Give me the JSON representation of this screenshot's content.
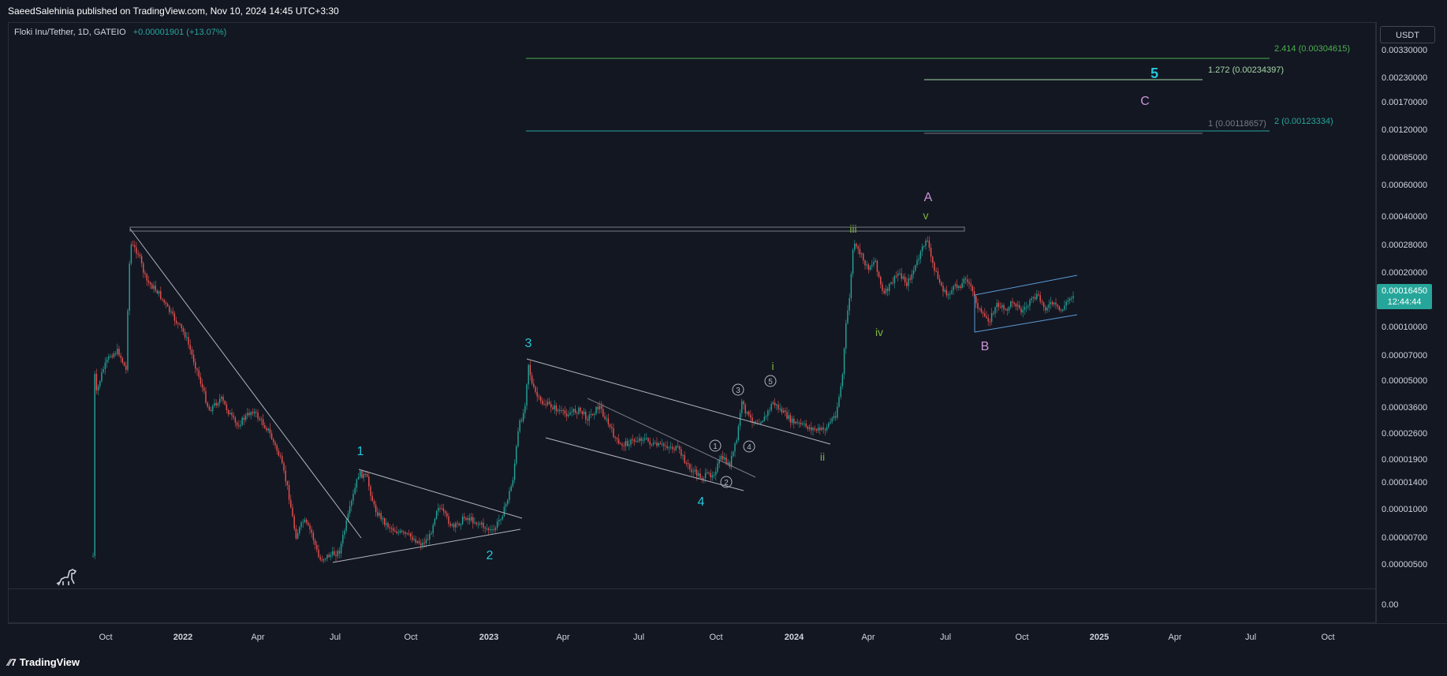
{
  "header": {
    "published": "SaeedSalehinia published on TradingView.com, Nov 10, 2024 14:45 UTC+3:30"
  },
  "legend": {
    "symbol": "Floki Inu/Tether, 1D, GATEIO",
    "change": "+0.00001901 (+13.07%)"
  },
  "price_axis": {
    "currency": "USDT",
    "labels": [
      "0.00330000",
      "0.00230000",
      "0.00170000",
      "0.00120000",
      "0.00085000",
      "0.00060000",
      "0.00040000",
      "0.00028000",
      "0.00020000",
      "0.00010000",
      "0.00007000",
      "0.00005000",
      "0.00003600",
      "0.00002600",
      "0.00001900",
      "0.00001400",
      "0.00001000",
      "0.00000700",
      "0.00000500",
      "0.00"
    ],
    "current_price": "0.00016450",
    "countdown": "12:44:44"
  },
  "time_axis": {
    "labels": [
      "Oct",
      "2022",
      "Apr",
      "Jul",
      "Oct",
      "2023",
      "Apr",
      "Jul",
      "Oct",
      "2024",
      "Apr",
      "Jul",
      "Oct",
      "2025",
      "Apr",
      "Jul",
      "Oct"
    ]
  },
  "fib_levels": [
    {
      "label": "2.414 (0.00304615)",
      "color": "#4caf50"
    },
    {
      "label": "1.272 (0.00234397)",
      "color": "#a5d6a7"
    },
    {
      "label": "1 (0.00118657)",
      "color": "#787b86"
    },
    {
      "label": "2 (0.00123334)",
      "color": "#26a69a"
    }
  ],
  "wave_labels": [
    {
      "text": "1",
      "color": "#26c6da"
    },
    {
      "text": "2",
      "color": "#26c6da"
    },
    {
      "text": "3",
      "color": "#26c6da"
    },
    {
      "text": "4",
      "color": "#26c6da"
    },
    {
      "text": "5",
      "color": "#26c6da"
    },
    {
      "text": "A",
      "color": "#ce93d8"
    },
    {
      "text": "B",
      "color": "#ce93d8"
    },
    {
      "text": "C",
      "color": "#ce93d8"
    },
    {
      "text": "i",
      "color": "#7cb342"
    },
    {
      "text": "ii",
      "color": "#7cb342"
    },
    {
      "text": "iii",
      "color": "#7cb342"
    },
    {
      "text": "iv",
      "color": "#7cb342"
    },
    {
      "text": "v",
      "color": "#7cb342"
    },
    {
      "text": "1",
      "color": "#b2b5be"
    },
    {
      "text": "2",
      "color": "#b2b5be"
    },
    {
      "text": "3",
      "color": "#b2b5be"
    },
    {
      "text": "4",
      "color": "#b2b5be"
    },
    {
      "text": "5",
      "color": "#b2b5be"
    }
  ],
  "footer": {
    "brand": "TradingView"
  },
  "colors": {
    "background": "#131722",
    "up": "#26a69a",
    "down": "#ef5350",
    "price_tag": "#26a69a"
  }
}
